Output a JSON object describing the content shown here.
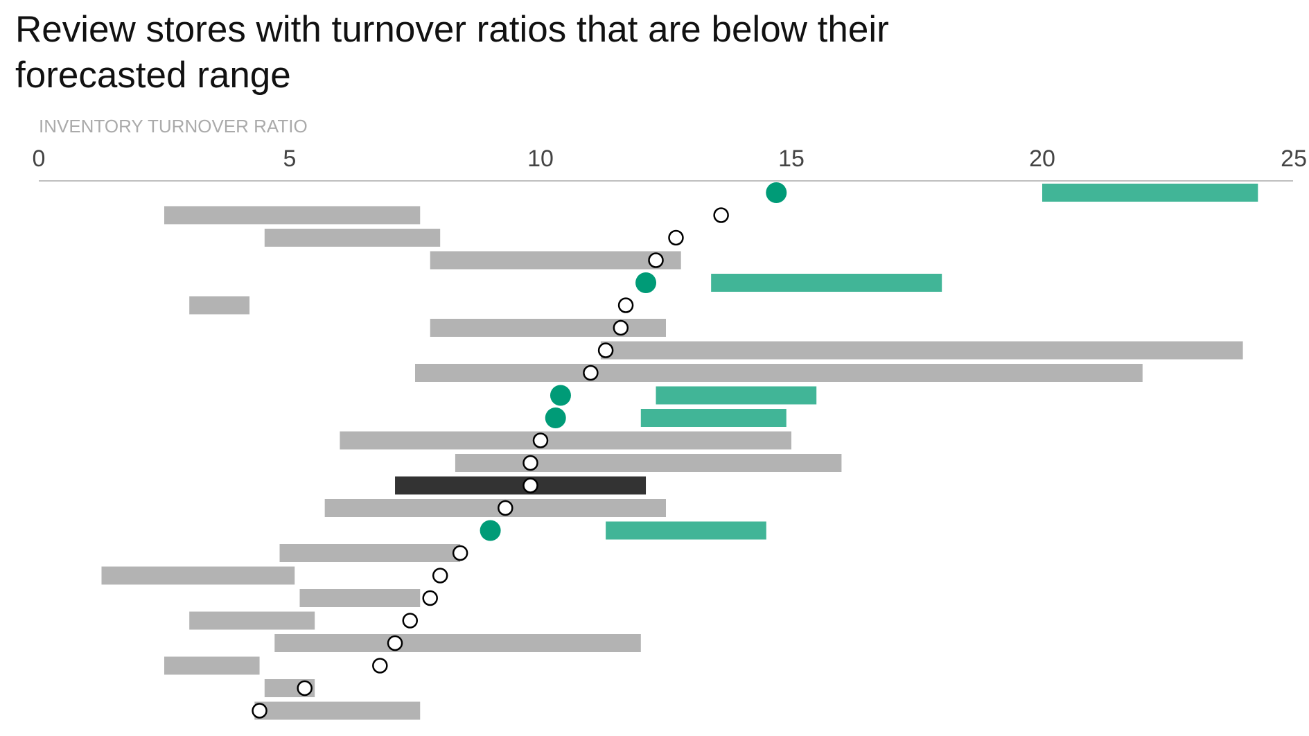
{
  "title": "Review stores with turnover ratios that are below their forecasted range",
  "chart_data": {
    "type": "range-dot",
    "xlabel": "INVENTORY TURNOVER RATIO",
    "xlim": [
      0,
      25
    ],
    "xticks": [
      0,
      5,
      10,
      15,
      20,
      25
    ],
    "axis_position": "top",
    "grid": false,
    "legend": "none",
    "colors": {
      "range_normal": "#b3b3b3",
      "range_below": "#41b597",
      "range_highlight": "#333333",
      "dot_below": "#009b77",
      "dot_normal_fill": "#ffffff",
      "dot_normal_stroke": "#000000"
    },
    "rows": [
      {
        "actual": 14.7,
        "range": [
          20.0,
          24.3
        ],
        "status": "below"
      },
      {
        "actual": 13.6,
        "range": [
          2.5,
          7.6
        ],
        "status": "normal"
      },
      {
        "actual": 12.7,
        "range": [
          4.5,
          8.0
        ],
        "status": "normal"
      },
      {
        "actual": 12.3,
        "range": [
          7.8,
          12.8
        ],
        "status": "normal"
      },
      {
        "actual": 12.1,
        "range": [
          13.4,
          18.0
        ],
        "status": "below"
      },
      {
        "actual": 11.7,
        "range": [
          3.0,
          4.2
        ],
        "status": "normal"
      },
      {
        "actual": 11.6,
        "range": [
          7.8,
          12.5
        ],
        "status": "normal"
      },
      {
        "actual": 11.3,
        "range": [
          11.2,
          24.0
        ],
        "status": "normal"
      },
      {
        "actual": 11.0,
        "range": [
          7.5,
          22.0
        ],
        "status": "normal"
      },
      {
        "actual": 10.4,
        "range": [
          12.3,
          15.5
        ],
        "status": "below"
      },
      {
        "actual": 10.3,
        "range": [
          12.0,
          14.9
        ],
        "status": "below"
      },
      {
        "actual": 10.0,
        "range": [
          6.0,
          15.0
        ],
        "status": "normal"
      },
      {
        "actual": 9.8,
        "range": [
          8.3,
          16.0
        ],
        "status": "normal"
      },
      {
        "actual": 9.8,
        "range": [
          7.1,
          12.1
        ],
        "status": "highlight"
      },
      {
        "actual": 9.3,
        "range": [
          5.7,
          12.5
        ],
        "status": "normal"
      },
      {
        "actual": 9.0,
        "range": [
          11.3,
          14.5
        ],
        "status": "below"
      },
      {
        "actual": 8.4,
        "range": [
          4.8,
          8.4
        ],
        "status": "normal"
      },
      {
        "actual": 8.0,
        "range": [
          1.25,
          5.1
        ],
        "status": "normal"
      },
      {
        "actual": 7.8,
        "range": [
          5.2,
          7.6
        ],
        "status": "normal"
      },
      {
        "actual": 7.4,
        "range": [
          3.0,
          5.5
        ],
        "status": "normal"
      },
      {
        "actual": 7.1,
        "range": [
          4.7,
          12.0
        ],
        "status": "normal"
      },
      {
        "actual": 6.8,
        "range": [
          2.5,
          4.4
        ],
        "status": "normal"
      },
      {
        "actual": 5.3,
        "range": [
          4.5,
          5.5
        ],
        "status": "normal"
      },
      {
        "actual": 4.4,
        "range": [
          4.3,
          7.6
        ],
        "status": "normal"
      }
    ]
  }
}
